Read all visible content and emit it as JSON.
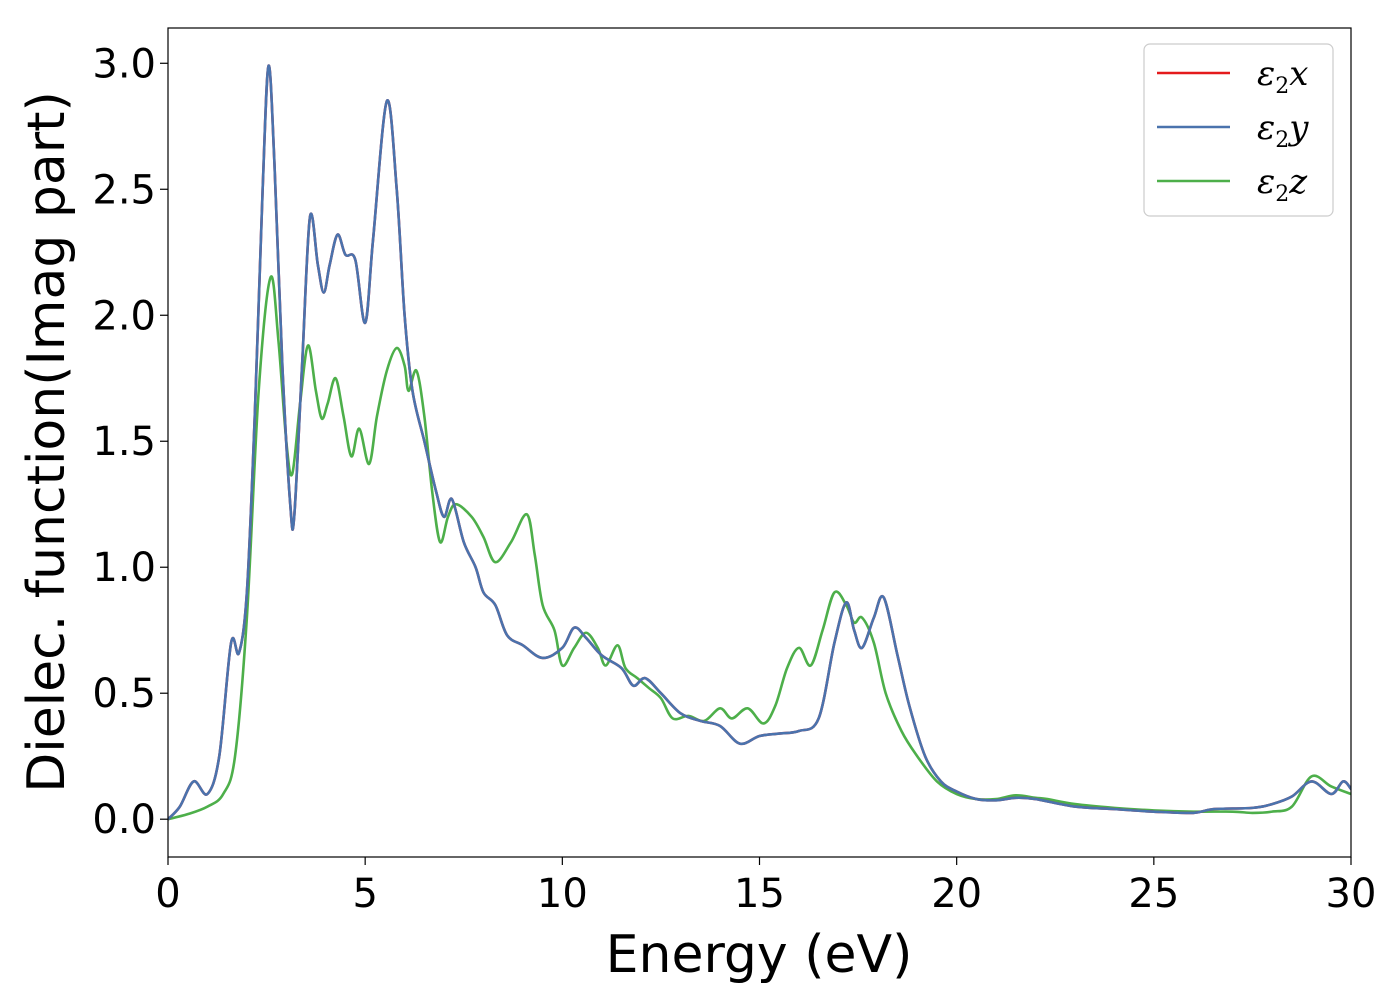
{
  "chart_data": {
    "type": "line",
    "title": "",
    "xlabel": "Energy (eV)",
    "ylabel": "Dielec. function(Imag part)",
    "xlim": [
      0,
      30
    ],
    "ylim": [
      -0.15,
      3.14
    ],
    "xticks": [
      0,
      5,
      10,
      15,
      20,
      25,
      30
    ],
    "xtick_labels": [
      "0",
      "5",
      "10",
      "15",
      "20",
      "25",
      "30"
    ],
    "yticks": [
      0.0,
      0.5,
      1.0,
      1.5,
      2.0,
      2.5,
      3.0
    ],
    "ytick_labels": [
      "0.0",
      "0.5",
      "1.0",
      "1.5",
      "2.0",
      "2.5",
      "3.0"
    ],
    "grid": false,
    "legend_position": "top-right",
    "series": [
      {
        "name": "ε2x",
        "legend": {
          "base": "ε",
          "sub": "2",
          "var": "x"
        },
        "color": "#e41a1c",
        "points": [
          [
            0,
            0
          ],
          [
            0.3,
            0.05
          ],
          [
            0.65,
            0.15
          ],
          [
            1.0,
            0.1
          ],
          [
            1.3,
            0.25
          ],
          [
            1.6,
            0.7
          ],
          [
            1.8,
            0.66
          ],
          [
            2.0,
            0.9
          ],
          [
            2.2,
            1.6
          ],
          [
            2.4,
            2.5
          ],
          [
            2.55,
            2.99
          ],
          [
            2.7,
            2.6
          ],
          [
            2.9,
            1.8
          ],
          [
            3.1,
            1.25
          ],
          [
            3.2,
            1.2
          ],
          [
            3.4,
            1.8
          ],
          [
            3.6,
            2.39
          ],
          [
            3.8,
            2.2
          ],
          [
            3.95,
            2.09
          ],
          [
            4.1,
            2.2
          ],
          [
            4.3,
            2.32
          ],
          [
            4.5,
            2.24
          ],
          [
            4.75,
            2.22
          ],
          [
            5.0,
            1.97
          ],
          [
            5.2,
            2.3
          ],
          [
            5.55,
            2.85
          ],
          [
            5.8,
            2.5
          ],
          [
            6.0,
            2.0
          ],
          [
            6.2,
            1.7
          ],
          [
            6.5,
            1.5
          ],
          [
            6.8,
            1.3
          ],
          [
            7.0,
            1.2
          ],
          [
            7.2,
            1.27
          ],
          [
            7.5,
            1.1
          ],
          [
            7.8,
            1.0
          ],
          [
            8.0,
            0.9
          ],
          [
            8.3,
            0.85
          ],
          [
            8.6,
            0.73
          ],
          [
            9.0,
            0.69
          ],
          [
            9.5,
            0.64
          ],
          [
            10.0,
            0.68
          ],
          [
            10.3,
            0.76
          ],
          [
            10.6,
            0.72
          ],
          [
            11.0,
            0.65
          ],
          [
            11.5,
            0.6
          ],
          [
            11.8,
            0.53
          ],
          [
            12.1,
            0.56
          ],
          [
            12.5,
            0.5
          ],
          [
            13.0,
            0.42
          ],
          [
            13.5,
            0.39
          ],
          [
            14.0,
            0.37
          ],
          [
            14.5,
            0.3
          ],
          [
            15.0,
            0.33
          ],
          [
            15.5,
            0.34
          ],
          [
            16.0,
            0.35
          ],
          [
            16.5,
            0.4
          ],
          [
            16.9,
            0.7
          ],
          [
            17.2,
            0.86
          ],
          [
            17.4,
            0.75
          ],
          [
            17.6,
            0.68
          ],
          [
            17.9,
            0.8
          ],
          [
            18.15,
            0.88
          ],
          [
            18.5,
            0.65
          ],
          [
            18.8,
            0.45
          ],
          [
            19.2,
            0.25
          ],
          [
            19.6,
            0.15
          ],
          [
            20.0,
            0.11
          ],
          [
            20.5,
            0.08
          ],
          [
            21.0,
            0.075
          ],
          [
            21.5,
            0.085
          ],
          [
            22.0,
            0.08
          ],
          [
            23.0,
            0.05
          ],
          [
            24.0,
            0.04
          ],
          [
            25.0,
            0.03
          ],
          [
            26.0,
            0.025
          ],
          [
            26.5,
            0.04
          ],
          [
            27.5,
            0.045
          ],
          [
            28.0,
            0.06
          ],
          [
            28.5,
            0.09
          ],
          [
            29.0,
            0.15
          ],
          [
            29.5,
            0.1
          ],
          [
            29.8,
            0.15
          ],
          [
            30.0,
            0.12
          ]
        ]
      },
      {
        "name": "ε2y",
        "legend": {
          "base": "ε",
          "sub": "2",
          "var": "y"
        },
        "color": "#4a73ad",
        "points": [
          [
            0,
            0
          ],
          [
            0.3,
            0.05
          ],
          [
            0.65,
            0.15
          ],
          [
            1.0,
            0.1
          ],
          [
            1.3,
            0.25
          ],
          [
            1.6,
            0.7
          ],
          [
            1.8,
            0.66
          ],
          [
            2.0,
            0.9
          ],
          [
            2.2,
            1.6
          ],
          [
            2.4,
            2.5
          ],
          [
            2.55,
            2.99
          ],
          [
            2.7,
            2.6
          ],
          [
            2.9,
            1.8
          ],
          [
            3.1,
            1.25
          ],
          [
            3.2,
            1.2
          ],
          [
            3.4,
            1.8
          ],
          [
            3.6,
            2.39
          ],
          [
            3.8,
            2.2
          ],
          [
            3.95,
            2.09
          ],
          [
            4.1,
            2.2
          ],
          [
            4.3,
            2.32
          ],
          [
            4.5,
            2.24
          ],
          [
            4.75,
            2.22
          ],
          [
            5.0,
            1.97
          ],
          [
            5.2,
            2.3
          ],
          [
            5.55,
            2.85
          ],
          [
            5.8,
            2.5
          ],
          [
            6.0,
            2.0
          ],
          [
            6.2,
            1.7
          ],
          [
            6.5,
            1.5
          ],
          [
            6.8,
            1.3
          ],
          [
            7.0,
            1.2
          ],
          [
            7.2,
            1.27
          ],
          [
            7.5,
            1.1
          ],
          [
            7.8,
            1.0
          ],
          [
            8.0,
            0.9
          ],
          [
            8.3,
            0.85
          ],
          [
            8.6,
            0.73
          ],
          [
            9.0,
            0.69
          ],
          [
            9.5,
            0.64
          ],
          [
            10.0,
            0.68
          ],
          [
            10.3,
            0.76
          ],
          [
            10.6,
            0.72
          ],
          [
            11.0,
            0.65
          ],
          [
            11.5,
            0.6
          ],
          [
            11.8,
            0.53
          ],
          [
            12.1,
            0.56
          ],
          [
            12.5,
            0.5
          ],
          [
            13.0,
            0.42
          ],
          [
            13.5,
            0.39
          ],
          [
            14.0,
            0.37
          ],
          [
            14.5,
            0.3
          ],
          [
            15.0,
            0.33
          ],
          [
            15.5,
            0.34
          ],
          [
            16.0,
            0.35
          ],
          [
            16.5,
            0.4
          ],
          [
            16.9,
            0.7
          ],
          [
            17.2,
            0.86
          ],
          [
            17.4,
            0.75
          ],
          [
            17.6,
            0.68
          ],
          [
            17.9,
            0.8
          ],
          [
            18.15,
            0.88
          ],
          [
            18.5,
            0.65
          ],
          [
            18.8,
            0.45
          ],
          [
            19.2,
            0.25
          ],
          [
            19.6,
            0.15
          ],
          [
            20.0,
            0.11
          ],
          [
            20.5,
            0.08
          ],
          [
            21.0,
            0.075
          ],
          [
            21.5,
            0.085
          ],
          [
            22.0,
            0.08
          ],
          [
            23.0,
            0.05
          ],
          [
            24.0,
            0.04
          ],
          [
            25.0,
            0.03
          ],
          [
            26.0,
            0.025
          ],
          [
            26.5,
            0.04
          ],
          [
            27.5,
            0.045
          ],
          [
            28.0,
            0.06
          ],
          [
            28.5,
            0.09
          ],
          [
            29.0,
            0.15
          ],
          [
            29.5,
            0.1
          ],
          [
            29.8,
            0.15
          ],
          [
            30.0,
            0.12
          ]
        ]
      },
      {
        "name": "ε2z",
        "legend": {
          "base": "ε",
          "sub": "2",
          "var": "z"
        },
        "color": "#4daf4a",
        "points": [
          [
            0,
            0
          ],
          [
            0.5,
            0.02
          ],
          [
            1.0,
            0.05
          ],
          [
            1.4,
            0.1
          ],
          [
            1.7,
            0.25
          ],
          [
            2.0,
            0.8
          ],
          [
            2.3,
            1.7
          ],
          [
            2.6,
            2.15
          ],
          [
            2.8,
            1.9
          ],
          [
            3.0,
            1.5
          ],
          [
            3.15,
            1.37
          ],
          [
            3.35,
            1.65
          ],
          [
            3.55,
            1.88
          ],
          [
            3.75,
            1.7
          ],
          [
            3.9,
            1.59
          ],
          [
            4.05,
            1.65
          ],
          [
            4.25,
            1.75
          ],
          [
            4.45,
            1.6
          ],
          [
            4.65,
            1.44
          ],
          [
            4.85,
            1.55
          ],
          [
            5.1,
            1.41
          ],
          [
            5.3,
            1.6
          ],
          [
            5.55,
            1.78
          ],
          [
            5.8,
            1.87
          ],
          [
            6.0,
            1.8
          ],
          [
            6.1,
            1.7
          ],
          [
            6.3,
            1.78
          ],
          [
            6.5,
            1.6
          ],
          [
            6.7,
            1.3
          ],
          [
            6.9,
            1.1
          ],
          [
            7.1,
            1.2
          ],
          [
            7.3,
            1.25
          ],
          [
            7.7,
            1.2
          ],
          [
            8.0,
            1.12
          ],
          [
            8.3,
            1.02
          ],
          [
            8.7,
            1.1
          ],
          [
            9.1,
            1.21
          ],
          [
            9.3,
            1.05
          ],
          [
            9.5,
            0.85
          ],
          [
            9.8,
            0.75
          ],
          [
            10.0,
            0.61
          ],
          [
            10.3,
            0.68
          ],
          [
            10.6,
            0.74
          ],
          [
            10.9,
            0.68
          ],
          [
            11.1,
            0.61
          ],
          [
            11.4,
            0.69
          ],
          [
            11.6,
            0.6
          ],
          [
            11.9,
            0.56
          ],
          [
            12.2,
            0.52
          ],
          [
            12.5,
            0.48
          ],
          [
            12.8,
            0.4
          ],
          [
            13.2,
            0.41
          ],
          [
            13.6,
            0.39
          ],
          [
            14.0,
            0.44
          ],
          [
            14.3,
            0.4
          ],
          [
            14.7,
            0.44
          ],
          [
            15.1,
            0.38
          ],
          [
            15.4,
            0.45
          ],
          [
            15.7,
            0.6
          ],
          [
            16.0,
            0.68
          ],
          [
            16.3,
            0.61
          ],
          [
            16.6,
            0.75
          ],
          [
            16.9,
            0.9
          ],
          [
            17.2,
            0.85
          ],
          [
            17.4,
            0.78
          ],
          [
            17.6,
            0.8
          ],
          [
            17.9,
            0.7
          ],
          [
            18.2,
            0.5
          ],
          [
            18.6,
            0.35
          ],
          [
            19.0,
            0.25
          ],
          [
            19.5,
            0.15
          ],
          [
            20.0,
            0.1
          ],
          [
            20.5,
            0.08
          ],
          [
            21.0,
            0.08
          ],
          [
            21.5,
            0.095
          ],
          [
            22.0,
            0.085
          ],
          [
            22.3,
            0.08
          ],
          [
            23.0,
            0.06
          ],
          [
            24.0,
            0.045
          ],
          [
            25.0,
            0.035
          ],
          [
            26.0,
            0.03
          ],
          [
            27.0,
            0.03
          ],
          [
            27.5,
            0.025
          ],
          [
            28.0,
            0.03
          ],
          [
            28.5,
            0.05
          ],
          [
            29.0,
            0.17
          ],
          [
            29.5,
            0.13
          ],
          [
            30.0,
            0.1
          ]
        ]
      }
    ]
  }
}
